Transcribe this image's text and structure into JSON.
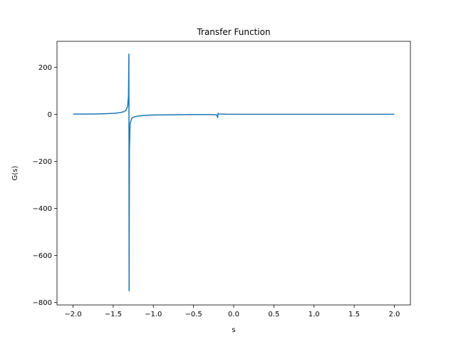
{
  "chart_data": {
    "type": "line",
    "title": "Transfer Function",
    "xlabel": "s",
    "ylabel": "G(s)",
    "xlim": [
      -2.2,
      2.2
    ],
    "ylim": [
      -810,
      310
    ],
    "xticks": [
      -2.0,
      -1.5,
      -1.0,
      -0.5,
      0.0,
      0.5,
      1.0,
      1.5,
      2.0
    ],
    "xtick_labels": [
      "−2.0",
      "−1.5",
      "−1.0",
      "−0.5",
      "0.0",
      "0.5",
      "1.0",
      "1.5",
      "2.0"
    ],
    "yticks": [
      200,
      0,
      -200,
      -400,
      -600,
      -800
    ],
    "ytick_labels": [
      "200",
      "0",
      "−200",
      "−400",
      "−600",
      "−800"
    ],
    "grid": false,
    "series": [
      {
        "color": "#1f77b4",
        "points": [
          [
            -2.0,
            0.8
          ],
          [
            -1.9,
            1.0
          ],
          [
            -1.8,
            1.3
          ],
          [
            -1.7,
            1.7
          ],
          [
            -1.6,
            2.5
          ],
          [
            -1.5,
            4.0
          ],
          [
            -1.45,
            5.5
          ],
          [
            -1.4,
            8.0
          ],
          [
            -1.36,
            12.0
          ],
          [
            -1.34,
            18.0
          ],
          [
            -1.32,
            35.0
          ],
          [
            -1.31,
            80.0
          ],
          [
            -1.305,
            256.0
          ],
          [
            -1.302,
            -750.0
          ],
          [
            -1.298,
            -150.0
          ],
          [
            -1.29,
            -40.0
          ],
          [
            -1.27,
            -18.0
          ],
          [
            -1.25,
            -12.0
          ],
          [
            -1.2,
            -8.0
          ],
          [
            -1.1,
            -4.5
          ],
          [
            -1.0,
            -3.0
          ],
          [
            -0.8,
            -2.0
          ],
          [
            -0.6,
            -1.5
          ],
          [
            -0.4,
            -1.2
          ],
          [
            -0.25,
            -1.5
          ],
          [
            -0.21,
            -3.0
          ],
          [
            -0.2,
            -14.0
          ],
          [
            -0.195,
            4.0
          ],
          [
            -0.18,
            1.2
          ],
          [
            -0.1,
            0.3
          ],
          [
            0.0,
            0.0
          ],
          [
            0.5,
            0.1
          ],
          [
            1.0,
            0.1
          ],
          [
            1.5,
            0.05
          ],
          [
            2.0,
            0.0
          ]
        ]
      }
    ]
  }
}
